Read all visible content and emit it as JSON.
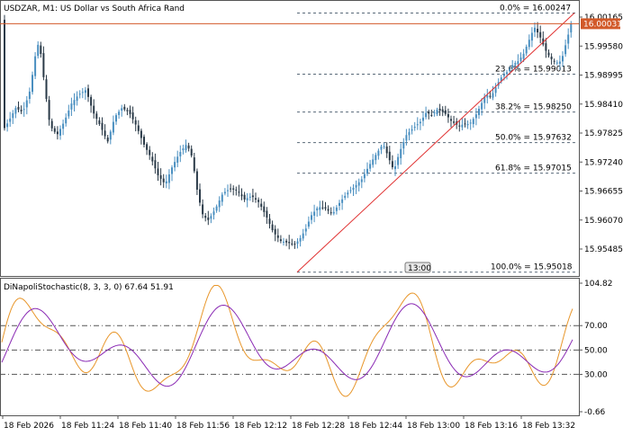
{
  "main_chart": {
    "title": "USDZAR, M1:  US Dollar vs South Africa Rand",
    "y_axis_labels": [
      "16.00165",
      "15.99580",
      "15.98995",
      "15.98410",
      "15.97825",
      "15.97240",
      "15.96655",
      "15.96070",
      "15.95485"
    ],
    "current_price_label": "16.00031",
    "current_price": 16.00031,
    "price_line_color": "#d25a2a",
    "trend_line_color": "#e03030",
    "bull_color": "#4a8fc0",
    "bear_color": "#2a3a48",
    "fibonacci_levels": [
      {
        "label": "0.0% = 16.00247",
        "price": 16.00247
      },
      {
        "label": "23.6% = 15.99013",
        "price": 15.99013
      },
      {
        "label": "38.2% = 15.98250",
        "price": 15.9825
      },
      {
        "label": "50.0% = 15.97632",
        "price": 15.97632
      },
      {
        "label": "61.8% = 15.97015",
        "price": 15.97015
      },
      {
        "label": "100.0% = 15.95018",
        "price": 15.95018
      }
    ],
    "time_marker_label": "13:00"
  },
  "indicator_panel": {
    "title": "DiNapoliStochastic(8, 3, 3, 0) 67.64 51.91",
    "y_axis_labels": [
      "104.82",
      "70.00",
      "50.00",
      "30.00",
      "-0.66"
    ],
    "levels": [
      70,
      50,
      30
    ],
    "y_range": [
      -0.66,
      104.82
    ],
    "fast_line_color": "#e8962a",
    "slow_line_color": "#8a2ab4"
  },
  "time_axis": {
    "labels": [
      "18 Feb 2026",
      "18 Feb 11:24",
      "18 Feb 11:40",
      "18 Feb 11:56",
      "18 Feb 12:12",
      "18 Feb 12:28",
      "18 Feb 12:44",
      "18 Feb 13:00",
      "18 Feb 13:16",
      "18 Feb 13:32"
    ]
  }
}
